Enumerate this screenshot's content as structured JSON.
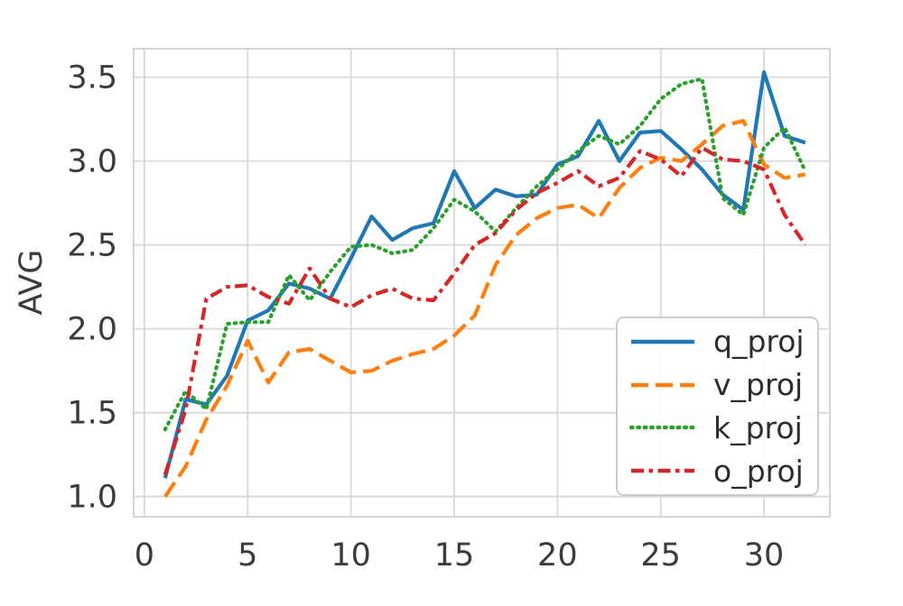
{
  "chart_data": {
    "type": "line",
    "title": "",
    "xlabel": "",
    "ylabel": "AVG",
    "x": [
      1,
      2,
      3,
      4,
      5,
      6,
      7,
      8,
      9,
      10,
      11,
      12,
      13,
      14,
      15,
      16,
      17,
      18,
      19,
      20,
      21,
      22,
      23,
      24,
      25,
      26,
      27,
      28,
      29,
      30,
      31,
      32
    ],
    "series": [
      {
        "name": "q_proj",
        "color": "#1f77b4",
        "style": "solid",
        "values": [
          1.11,
          1.58,
          1.55,
          1.72,
          2.05,
          2.11,
          2.27,
          2.24,
          2.18,
          2.42,
          2.67,
          2.53,
          2.6,
          2.63,
          2.94,
          2.72,
          2.83,
          2.79,
          2.8,
          2.98,
          3.03,
          3.24,
          3.0,
          3.17,
          3.18,
          3.07,
          2.95,
          2.8,
          2.71,
          3.53,
          3.15,
          3.11
        ]
      },
      {
        "name": "v_proj",
        "color": "#ff7f0e",
        "style": "dashed",
        "values": [
          1.0,
          1.18,
          1.46,
          1.66,
          1.93,
          1.68,
          1.86,
          1.88,
          1.81,
          1.74,
          1.75,
          1.81,
          1.85,
          1.88,
          1.96,
          2.08,
          2.38,
          2.56,
          2.66,
          2.72,
          2.74,
          2.66,
          2.84,
          2.96,
          3.02,
          3.0,
          3.1,
          3.21,
          3.24,
          2.98,
          2.9,
          2.92
        ]
      },
      {
        "name": "k_proj",
        "color": "#2ca02c",
        "style": "dotted",
        "values": [
          1.4,
          1.63,
          1.52,
          2.03,
          2.04,
          2.04,
          2.32,
          2.17,
          2.34,
          2.49,
          2.5,
          2.45,
          2.47,
          2.6,
          2.77,
          2.7,
          2.58,
          2.72,
          2.85,
          2.95,
          3.06,
          3.15,
          3.1,
          3.21,
          3.37,
          3.46,
          3.49,
          2.78,
          2.68,
          3.08,
          3.2,
          2.94
        ]
      },
      {
        "name": "o_proj",
        "color": "#d62728",
        "style": "dashdot",
        "values": [
          1.13,
          1.52,
          2.18,
          2.25,
          2.26,
          2.19,
          2.15,
          2.36,
          2.18,
          2.13,
          2.2,
          2.24,
          2.18,
          2.17,
          2.33,
          2.5,
          2.57,
          2.71,
          2.81,
          2.87,
          2.94,
          2.85,
          2.9,
          3.06,
          3.01,
          2.91,
          3.08,
          3.01,
          3.0,
          2.95,
          2.68,
          2.5
        ]
      }
    ],
    "xticks": [
      0,
      5,
      10,
      15,
      20,
      25,
      30
    ],
    "yticks": [
      1.0,
      1.5,
      2.0,
      2.5,
      3.0,
      3.5
    ],
    "xlim": [
      -0.52,
      33.19
    ],
    "ylim": [
      0.88,
      3.67
    ],
    "grid": true,
    "grid_color": "#d8d8d8",
    "border_color": "#d4d4d4",
    "text_color": "#3b3b3b",
    "legend": {
      "position": "lower right",
      "labels": [
        "q_proj",
        "v_proj",
        "k_proj",
        "o_proj"
      ]
    }
  }
}
